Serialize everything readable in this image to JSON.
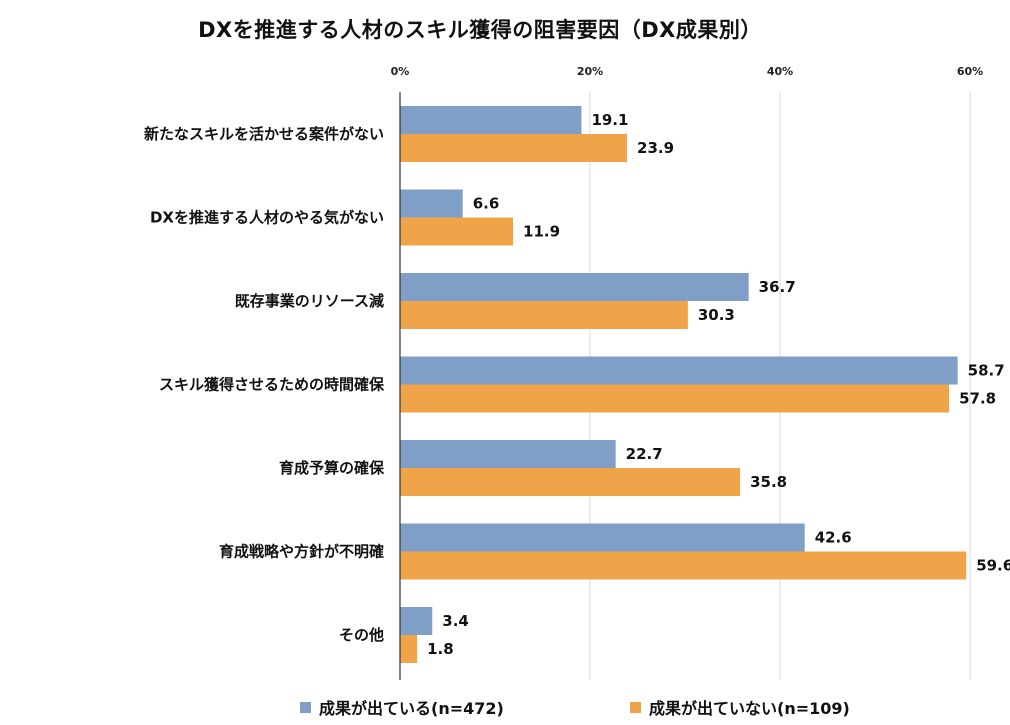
{
  "chart_data": {
    "type": "bar",
    "orientation": "horizontal",
    "title": "DXを推進する人材のスキル獲得の阻害要因（DX成果別）",
    "categories": [
      "新たなスキルを活かせる案件がない",
      "DXを推進する人材のやる気がない",
      "既存事業のリソース減",
      "スキル獲得させるための時間確保",
      "育成予算の確保",
      "育成戦略や方針が不明確",
      "その他"
    ],
    "series": [
      {
        "name": "成果が出ている(n=472)",
        "color": "#7f9fc6",
        "values": [
          19.1,
          6.6,
          36.7,
          58.7,
          22.7,
          42.6,
          3.4
        ]
      },
      {
        "name": "成果が出ていない(n=109)",
        "color": "#f0a449",
        "values": [
          23.9,
          11.9,
          30.3,
          57.8,
          35.8,
          59.6,
          1.8
        ]
      }
    ],
    "xlim": [
      0,
      60
    ],
    "xticks": [
      "0%",
      "20%",
      "40%",
      "60%"
    ],
    "grid": true,
    "legend_position": "bottom"
  }
}
